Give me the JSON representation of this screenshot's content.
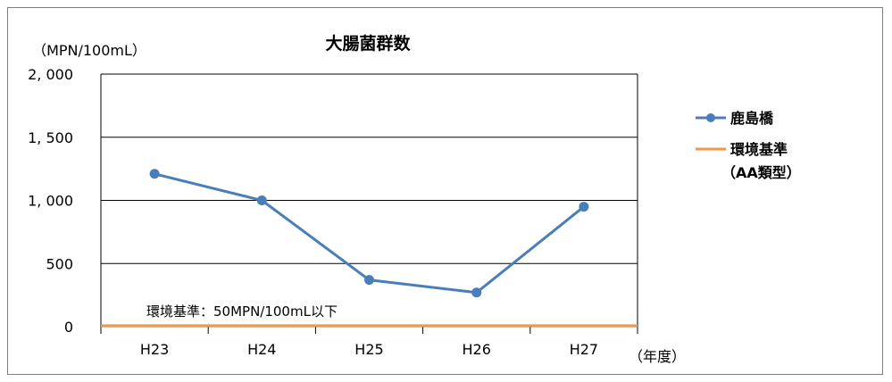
{
  "chart_data": {
    "type": "line",
    "title": "大腸菌群数",
    "ylabel": "（MPN/100mL）",
    "xlabel": "（年度）",
    "categories": [
      "H23",
      "H24",
      "H25",
      "H26",
      "H27"
    ],
    "ylim": [
      0,
      2000
    ],
    "yticks": [
      0,
      500,
      1000,
      1500,
      2000
    ],
    "ytick_labels": [
      "0",
      "500",
      "1, 000",
      "1, 500",
      "2, 000"
    ],
    "grid": true,
    "legend_position": "right",
    "series": [
      {
        "name": "鹿島橋",
        "values": [
          1210,
          1000,
          370,
          270,
          950
        ],
        "color": "#4a7ebb"
      }
    ],
    "reference_line": {
      "name_line1": "環境基準",
      "name_line2": "（AA類型）",
      "value": 50,
      "color": "#f79646",
      "annotation": "環境基準：50MPN/100mL以下"
    }
  }
}
